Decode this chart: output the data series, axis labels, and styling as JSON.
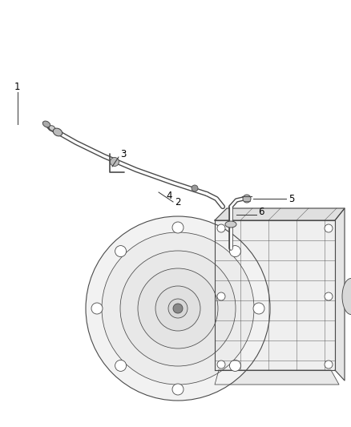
{
  "background_color": "#ffffff",
  "line_color": "#4a4a4a",
  "label_color": "#000000",
  "label_fontsize": 8.5,
  "fig_width": 4.38,
  "fig_height": 5.33,
  "dpi": 100
}
